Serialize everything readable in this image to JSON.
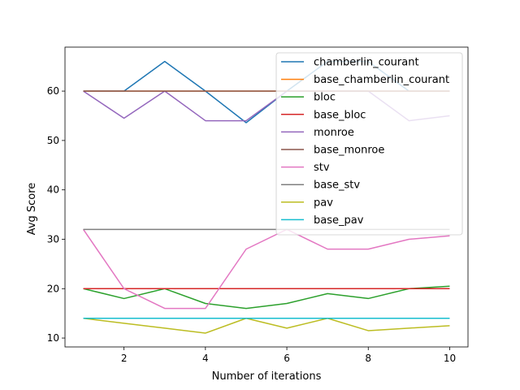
{
  "chart_data": {
    "type": "line",
    "xlabel": "Number of iterations",
    "ylabel": "Avg Score",
    "xlim": [
      0.55,
      10.45
    ],
    "ylim": [
      8.2,
      68.9
    ],
    "xticks": [
      2,
      4,
      6,
      8,
      10
    ],
    "yticks": [
      10,
      20,
      30,
      40,
      50,
      60
    ],
    "grid": false,
    "legend_position": "upper-right",
    "x": [
      1,
      2,
      3,
      4,
      5,
      6,
      7,
      8,
      9,
      10
    ],
    "series": [
      {
        "name": "chamberlin_courant",
        "color": "#1f77b4",
        "values": [
          60,
          60,
          66,
          60,
          53.6,
          60,
          66,
          66,
          60,
          60
        ]
      },
      {
        "name": "base_chamberlin_courant",
        "color": "#ff7f0e",
        "values": [
          60,
          60,
          60,
          60,
          60,
          60,
          60,
          60,
          60,
          60
        ]
      },
      {
        "name": "bloc",
        "color": "#2ca02c",
        "values": [
          20,
          18,
          20,
          17,
          16,
          17,
          19,
          18,
          20,
          20.5
        ]
      },
      {
        "name": "base_bloc",
        "color": "#d62728",
        "values": [
          20,
          20,
          20,
          20,
          20,
          20,
          20,
          20,
          20,
          20
        ]
      },
      {
        "name": "monroe",
        "color": "#9467bd",
        "values": [
          60,
          54.5,
          60,
          54,
          54,
          60,
          60,
          60,
          54,
          55
        ]
      },
      {
        "name": "base_monroe",
        "color": "#8c564b",
        "values": [
          60,
          60,
          60,
          60,
          60,
          60,
          60,
          60,
          60,
          60
        ]
      },
      {
        "name": "stv",
        "color": "#e377c2",
        "values": [
          32,
          20,
          16,
          16,
          28,
          32,
          28,
          28,
          30,
          30.7
        ]
      },
      {
        "name": "base_stv",
        "color": "#7f7f7f",
        "values": [
          32,
          32,
          32,
          32,
          32,
          32,
          32,
          32,
          32,
          32
        ]
      },
      {
        "name": "pav",
        "color": "#bcbd22",
        "values": [
          14,
          13,
          12,
          11,
          14,
          12,
          14,
          11.5,
          12,
          12.5
        ]
      },
      {
        "name": "base_pav",
        "color": "#17becf",
        "values": [
          14,
          14,
          14,
          14,
          14,
          14,
          14,
          14,
          14,
          14
        ]
      }
    ]
  }
}
